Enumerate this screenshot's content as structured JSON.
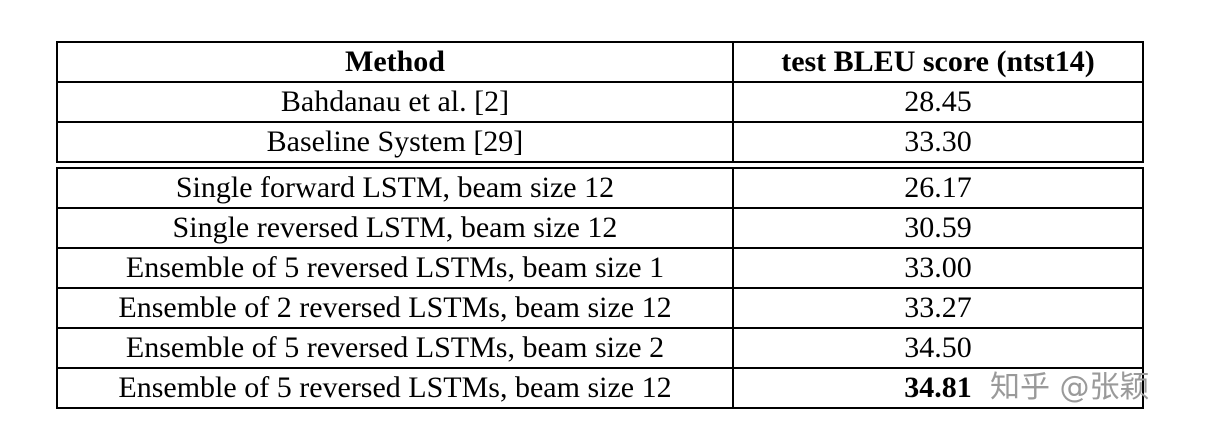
{
  "table": {
    "header": [
      "Method",
      "test BLEU score (ntst14)"
    ],
    "groups": [
      [
        [
          "Bahdanau et al. [2]",
          "28.45"
        ],
        [
          "Baseline System [29]",
          "33.30"
        ]
      ],
      [
        [
          "Single forward LSTM, beam size 12",
          "26.17"
        ],
        [
          "Single reversed LSTM, beam size 12",
          "30.59"
        ],
        [
          "Ensemble of 5 reversed LSTMs, beam size 1",
          "33.00"
        ],
        [
          "Ensemble of 2 reversed LSTMs, beam size 12",
          "33.27"
        ],
        [
          "Ensemble of 5 reversed LSTMs, beam size 2",
          "34.50"
        ],
        [
          "Ensemble of 5 reversed LSTMs, beam size 12",
          "34.81"
        ]
      ]
    ]
  },
  "watermark": "知乎 @张颖"
}
